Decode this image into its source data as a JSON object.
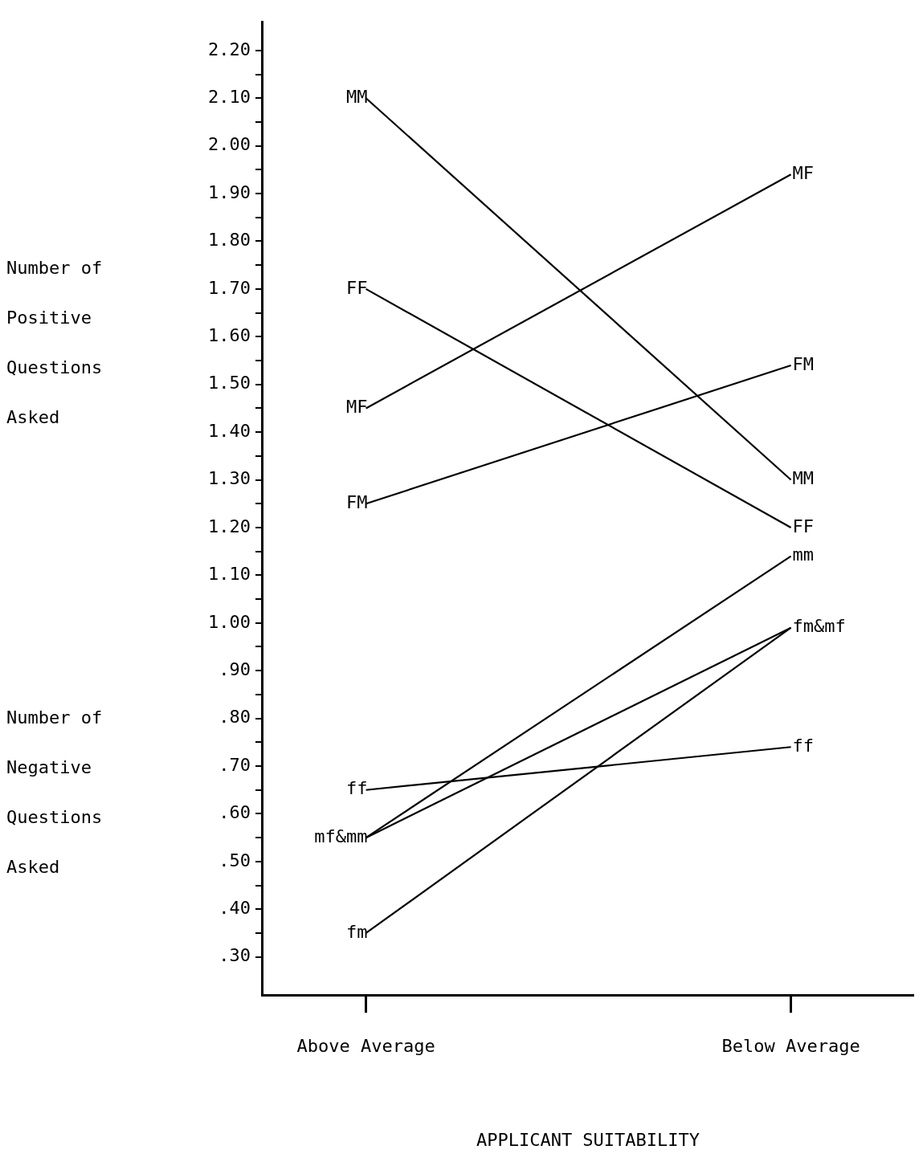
{
  "chart_data": {
    "type": "line",
    "xlabel": "APPLICANT SUITABILITY",
    "categories": [
      "Above Average",
      "Below Average"
    ],
    "series": [
      {
        "color": "#000000",
        "values": [
          2.1,
          1.3
        ]
      },
      {
        "color": "#000000",
        "values": [
          1.45,
          1.94
        ]
      },
      {
        "color": "#000000",
        "values": [
          1.7,
          1.2
        ]
      },
      {
        "color": "#000000",
        "values": [
          1.25,
          1.54
        ]
      },
      {
        "color": "#000000",
        "values": [
          0.55,
          1.14
        ]
      },
      {
        "color": "#000000",
        "values": [
          0.55,
          0.99
        ]
      },
      {
        "color": "#000000",
        "values": [
          0.35,
          0.99
        ]
      },
      {
        "color": "#000000",
        "values": [
          0.65,
          0.74
        ]
      }
    ],
    "ylim": [
      0.22,
      2.26
    ],
    "yticks": [
      {
        "value": 0.3,
        "label": ".30"
      },
      {
        "value": 0.35,
        "label": null
      },
      {
        "value": 0.4,
        "label": ".40"
      },
      {
        "value": 0.45,
        "label": null
      },
      {
        "value": 0.5,
        "label": ".50"
      },
      {
        "value": 0.55,
        "label": null
      },
      {
        "value": 0.6,
        "label": ".60"
      },
      {
        "value": 0.65,
        "label": null
      },
      {
        "value": 0.7,
        "label": ".70"
      },
      {
        "value": 0.75,
        "label": null
      },
      {
        "value": 0.8,
        "label": ".80"
      },
      {
        "value": 0.85,
        "label": null
      },
      {
        "value": 0.9,
        "label": ".90"
      },
      {
        "value": 0.95,
        "label": null
      },
      {
        "value": 1.0,
        "label": "1.00"
      },
      {
        "value": 1.05,
        "label": null
      },
      {
        "value": 1.1,
        "label": "1.10"
      },
      {
        "value": 1.15,
        "label": null
      },
      {
        "value": 1.2,
        "label": "1.20"
      },
      {
        "value": 1.25,
        "label": null
      },
      {
        "value": 1.3,
        "label": "1.30"
      },
      {
        "value": 1.35,
        "label": null
      },
      {
        "value": 1.4,
        "label": "1.40"
      },
      {
        "value": 1.45,
        "label": null
      },
      {
        "value": 1.5,
        "label": "1.50"
      },
      {
        "value": 1.55,
        "label": null
      },
      {
        "value": 1.6,
        "label": "1.60"
      },
      {
        "value": 1.65,
        "label": null
      },
      {
        "value": 1.7,
        "label": "1.70"
      },
      {
        "value": 1.75,
        "label": null
      },
      {
        "value": 1.8,
        "label": "1.80"
      },
      {
        "value": 1.85,
        "label": null
      },
      {
        "value": 1.9,
        "label": "1.90"
      },
      {
        "value": 1.95,
        "label": null
      },
      {
        "value": 2.0,
        "label": "2.00"
      },
      {
        "value": 2.05,
        "label": null
      },
      {
        "value": 2.1,
        "label": "2.10"
      },
      {
        "value": 2.15,
        "label": null
      },
      {
        "value": 2.2,
        "label": "2.20"
      }
    ],
    "grid": false,
    "legend": false,
    "marker": "none",
    "line_style": "solid",
    "annotations": [
      "Number of Positive Questions Asked",
      "Number of Negative Questions Asked",
      {
        "text": "MM",
        "x": "Above Average",
        "y": 2.1
      },
      {
        "text": "FF",
        "x": "Above Average",
        "y": 1.7
      },
      {
        "text": "MF",
        "x": "Above Average",
        "y": 1.45
      },
      {
        "text": "FM",
        "x": "Above Average",
        "y": 1.25
      },
      {
        "text": "ff",
        "x": "Above Average",
        "y": 0.65
      },
      {
        "text": "mf&mm",
        "x": "Above Average",
        "y": 0.55
      },
      {
        "text": "fm",
        "x": "Above Average",
        "y": 0.35
      },
      {
        "text": "MF",
        "x": "Below Average",
        "y": 1.94
      },
      {
        "text": "FM",
        "x": "Below Average",
        "y": 1.54
      },
      {
        "text": "MM",
        "x": "Below Average",
        "y": 1.3
      },
      {
        "text": "FF",
        "x": "Below Average",
        "y": 1.2
      },
      {
        "text": "mm",
        "x": "Below Average",
        "y": 1.14
      },
      {
        "text": "fm&mf",
        "x": "Below Average",
        "y": 0.99
      },
      {
        "text": "ff",
        "x": "Below Average",
        "y": 0.74
      }
    ]
  }
}
